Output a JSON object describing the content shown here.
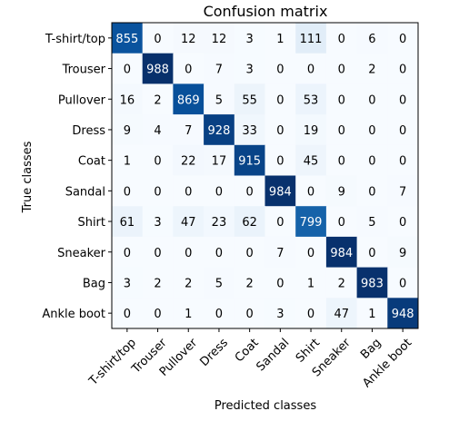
{
  "chart_data": {
    "type": "heatmap",
    "title": "Confusion matrix",
    "xlabel": "Predicted classes",
    "ylabel": "True classes",
    "x_categories": [
      "T-shirt/top",
      "Trouser",
      "Pullover",
      "Dress",
      "Coat",
      "Sandal",
      "Shirt",
      "Sneaker",
      "Bag",
      "Ankle boot"
    ],
    "y_categories": [
      "T-shirt/top",
      "Trouser",
      "Pullover",
      "Dress",
      "Coat",
      "Sandal",
      "Shirt",
      "Sneaker",
      "Bag",
      "Ankle boot"
    ],
    "values": [
      [
        855,
        0,
        12,
        12,
        3,
        1,
        111,
        0,
        6,
        0
      ],
      [
        0,
        988,
        0,
        7,
        3,
        0,
        0,
        0,
        2,
        0
      ],
      [
        16,
        2,
        869,
        5,
        55,
        0,
        53,
        0,
        0,
        0
      ],
      [
        9,
        4,
        7,
        928,
        33,
        0,
        19,
        0,
        0,
        0
      ],
      [
        1,
        0,
        22,
        17,
        915,
        0,
        45,
        0,
        0,
        0
      ],
      [
        0,
        0,
        0,
        0,
        0,
        984,
        0,
        9,
        0,
        7
      ],
      [
        61,
        3,
        47,
        23,
        62,
        0,
        799,
        0,
        5,
        0
      ],
      [
        0,
        0,
        0,
        0,
        0,
        7,
        0,
        984,
        0,
        9
      ],
      [
        3,
        2,
        2,
        5,
        2,
        0,
        1,
        2,
        983,
        0
      ],
      [
        0,
        0,
        1,
        0,
        0,
        3,
        0,
        47,
        1,
        948
      ]
    ],
    "colormap": "Blues",
    "value_range": [
      0,
      988
    ],
    "colors": {
      "low": "#f7fbff",
      "high": "#08306b",
      "text_dark": "#000000",
      "text_light": "#ffffff"
    },
    "grid": false,
    "xtick_rotation": 45
  }
}
